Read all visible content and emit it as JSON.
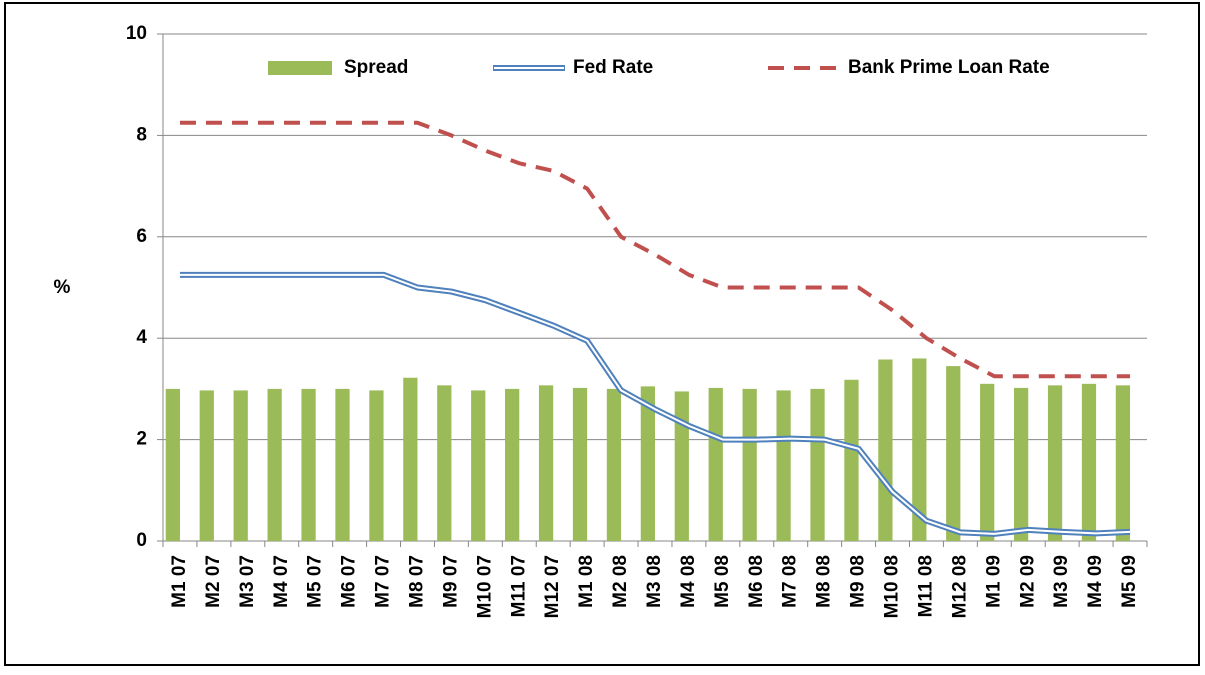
{
  "chart_data": {
    "type": "bar-line",
    "y_label": "%",
    "categories": [
      "M1 07",
      "M2 07",
      "M3 07",
      "M4 07",
      "M5 07",
      "M6 07",
      "M7 07",
      "M8 07",
      "M9 07",
      "M10 07",
      "M11 07",
      "M12 07",
      "M1 08",
      "M2 08",
      "M3 08",
      "M4 08",
      "M5 08",
      "M6 08",
      "M7 08",
      "M8 08",
      "M9 08",
      "M10 08",
      "M11 08",
      "M12 08",
      "M1 09",
      "M2 09",
      "M3 09",
      "M4 09",
      "M5 09"
    ],
    "series": [
      {
        "name": "Spread",
        "type": "bar",
        "color": "#9bbb59",
        "values": [
          3.0,
          2.97,
          2.97,
          3.0,
          3.0,
          3.0,
          2.97,
          3.22,
          3.07,
          2.97,
          3.0,
          3.07,
          3.02,
          3.0,
          3.05,
          2.95,
          3.02,
          3.0,
          2.97,
          3.0,
          3.18,
          3.58,
          3.6,
          3.45,
          3.1,
          3.02,
          3.07,
          3.1,
          3.07
        ]
      },
      {
        "name": "Fed Rate",
        "type": "double-line",
        "color": "#4f81bd",
        "values": [
          5.25,
          5.25,
          5.25,
          5.25,
          5.25,
          5.25,
          5.25,
          5.0,
          4.92,
          4.75,
          4.5,
          4.25,
          3.95,
          2.97,
          2.6,
          2.27,
          2.0,
          2.0,
          2.02,
          2.0,
          1.82,
          0.97,
          0.4,
          0.17,
          0.14,
          0.22,
          0.18,
          0.15,
          0.18
        ]
      },
      {
        "name": "Bank Prime Loan Rate",
        "type": "dashed-line",
        "color": "#c0504d",
        "values": [
          8.25,
          8.25,
          8.25,
          8.25,
          8.25,
          8.25,
          8.25,
          8.25,
          8.0,
          7.7,
          7.45,
          7.3,
          6.95,
          6.0,
          5.65,
          5.25,
          5.0,
          5.0,
          5.0,
          5.0,
          5.0,
          4.55,
          4.0,
          3.6,
          3.25,
          3.25,
          3.25,
          3.25,
          3.25
        ]
      }
    ],
    "ylim": [
      0,
      10
    ],
    "yticks": [
      0,
      2,
      4,
      6,
      8,
      10
    ],
    "grid": true,
    "legend": "top"
  }
}
